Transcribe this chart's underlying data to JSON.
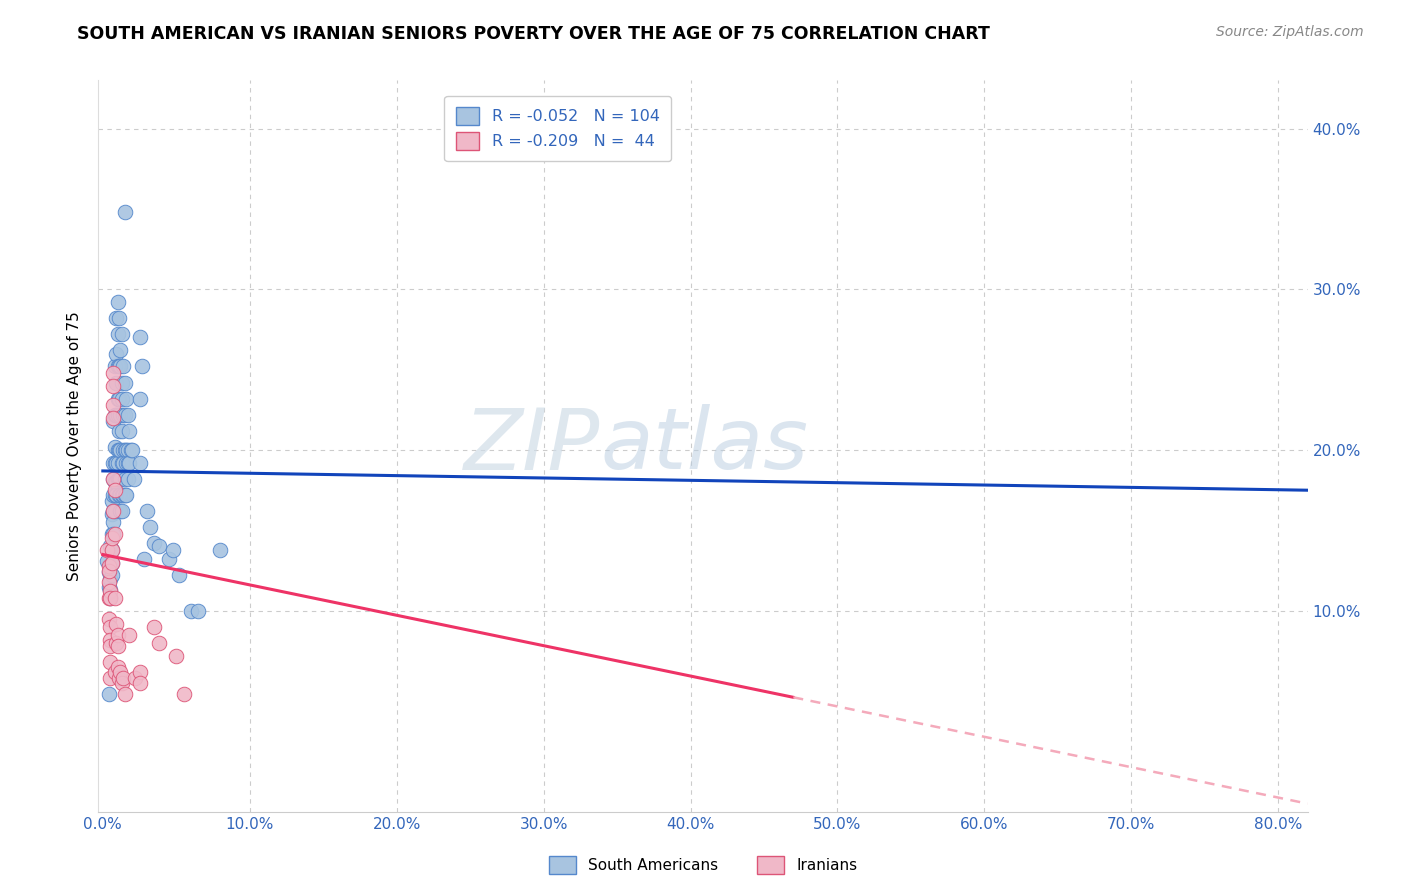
{
  "title": "SOUTH AMERICAN VS IRANIAN SENIORS POVERTY OVER THE AGE OF 75 CORRELATION CHART",
  "source": "Source: ZipAtlas.com",
  "ylabel": "Seniors Poverty Over the Age of 75",
  "xlim": [
    -0.003,
    0.82
  ],
  "ylim": [
    -0.025,
    0.43
  ],
  "legend_blue_r": "-0.052",
  "legend_blue_n": "104",
  "legend_pink_r": "-0.209",
  "legend_pink_n": " 44",
  "legend_label_blue": "South Americans",
  "legend_label_pink": "Iranians",
  "blue_color": "#A8C4E0",
  "blue_edge_color": "#5588CC",
  "pink_color": "#F0B8C8",
  "pink_edge_color": "#DD5577",
  "trendline_blue": "#1144BB",
  "trendline_pink_solid": "#EE3366",
  "trendline_pink_dashed": "#F4AABB",
  "blue_scatter": [
    [
      0.003,
      0.131
    ],
    [
      0.004,
      0.124
    ],
    [
      0.004,
      0.115
    ],
    [
      0.005,
      0.128
    ],
    [
      0.005,
      0.12
    ],
    [
      0.005,
      0.113
    ],
    [
      0.005,
      0.108
    ],
    [
      0.005,
      0.14
    ],
    [
      0.006,
      0.148
    ],
    [
      0.006,
      0.138
    ],
    [
      0.006,
      0.13
    ],
    [
      0.006,
      0.16
    ],
    [
      0.006,
      0.168
    ],
    [
      0.006,
      0.122
    ],
    [
      0.007,
      0.172
    ],
    [
      0.007,
      0.182
    ],
    [
      0.007,
      0.162
    ],
    [
      0.007,
      0.155
    ],
    [
      0.007,
      0.148
    ],
    [
      0.007,
      0.192
    ],
    [
      0.007,
      0.218
    ],
    [
      0.008,
      0.252
    ],
    [
      0.008,
      0.222
    ],
    [
      0.008,
      0.202
    ],
    [
      0.008,
      0.192
    ],
    [
      0.008,
      0.18
    ],
    [
      0.008,
      0.172
    ],
    [
      0.008,
      0.162
    ],
    [
      0.009,
      0.282
    ],
    [
      0.009,
      0.26
    ],
    [
      0.009,
      0.242
    ],
    [
      0.009,
      0.222
    ],
    [
      0.009,
      0.192
    ],
    [
      0.009,
      0.18
    ],
    [
      0.009,
      0.172
    ],
    [
      0.01,
      0.292
    ],
    [
      0.01,
      0.272
    ],
    [
      0.01,
      0.252
    ],
    [
      0.01,
      0.232
    ],
    [
      0.01,
      0.222
    ],
    [
      0.01,
      0.2
    ],
    [
      0.01,
      0.192
    ],
    [
      0.01,
      0.182
    ],
    [
      0.011,
      0.282
    ],
    [
      0.011,
      0.252
    ],
    [
      0.011,
      0.232
    ],
    [
      0.011,
      0.212
    ],
    [
      0.011,
      0.2
    ],
    [
      0.011,
      0.182
    ],
    [
      0.011,
      0.172
    ],
    [
      0.012,
      0.262
    ],
    [
      0.012,
      0.252
    ],
    [
      0.012,
      0.222
    ],
    [
      0.012,
      0.2
    ],
    [
      0.012,
      0.182
    ],
    [
      0.012,
      0.172
    ],
    [
      0.012,
      0.162
    ],
    [
      0.013,
      0.272
    ],
    [
      0.013,
      0.242
    ],
    [
      0.013,
      0.232
    ],
    [
      0.013,
      0.212
    ],
    [
      0.013,
      0.192
    ],
    [
      0.013,
      0.172
    ],
    [
      0.013,
      0.162
    ],
    [
      0.014,
      0.252
    ],
    [
      0.014,
      0.222
    ],
    [
      0.014,
      0.2
    ],
    [
      0.014,
      0.192
    ],
    [
      0.014,
      0.172
    ],
    [
      0.015,
      0.348
    ],
    [
      0.015,
      0.242
    ],
    [
      0.015,
      0.222
    ],
    [
      0.015,
      0.2
    ],
    [
      0.015,
      0.182
    ],
    [
      0.015,
      0.172
    ],
    [
      0.016,
      0.232
    ],
    [
      0.016,
      0.2
    ],
    [
      0.016,
      0.192
    ],
    [
      0.016,
      0.172
    ],
    [
      0.017,
      0.222
    ],
    [
      0.017,
      0.2
    ],
    [
      0.017,
      0.192
    ],
    [
      0.017,
      0.182
    ],
    [
      0.018,
      0.212
    ],
    [
      0.018,
      0.192
    ],
    [
      0.019,
      0.2
    ],
    [
      0.02,
      0.2
    ],
    [
      0.021,
      0.182
    ],
    [
      0.025,
      0.27
    ],
    [
      0.025,
      0.232
    ],
    [
      0.025,
      0.192
    ],
    [
      0.027,
      0.252
    ],
    [
      0.028,
      0.132
    ],
    [
      0.03,
      0.162
    ],
    [
      0.032,
      0.152
    ],
    [
      0.035,
      0.142
    ],
    [
      0.038,
      0.14
    ],
    [
      0.045,
      0.132
    ],
    [
      0.048,
      0.138
    ],
    [
      0.052,
      0.122
    ],
    [
      0.06,
      0.1
    ],
    [
      0.065,
      0.1
    ],
    [
      0.08,
      0.138
    ],
    [
      0.004,
      0.048
    ]
  ],
  "pink_scatter": [
    [
      0.003,
      0.138
    ],
    [
      0.004,
      0.128
    ],
    [
      0.004,
      0.118
    ],
    [
      0.004,
      0.108
    ],
    [
      0.004,
      0.125
    ],
    [
      0.004,
      0.095
    ],
    [
      0.005,
      0.112
    ],
    [
      0.005,
      0.09
    ],
    [
      0.005,
      0.082
    ],
    [
      0.005,
      0.108
    ],
    [
      0.005,
      0.078
    ],
    [
      0.005,
      0.068
    ],
    [
      0.005,
      0.058
    ],
    [
      0.006,
      0.138
    ],
    [
      0.006,
      0.145
    ],
    [
      0.006,
      0.13
    ],
    [
      0.007,
      0.248
    ],
    [
      0.007,
      0.24
    ],
    [
      0.007,
      0.228
    ],
    [
      0.007,
      0.22
    ],
    [
      0.007,
      0.182
    ],
    [
      0.007,
      0.162
    ],
    [
      0.008,
      0.175
    ],
    [
      0.008,
      0.148
    ],
    [
      0.008,
      0.108
    ],
    [
      0.008,
      0.062
    ],
    [
      0.009,
      0.092
    ],
    [
      0.009,
      0.08
    ],
    [
      0.01,
      0.085
    ],
    [
      0.01,
      0.078
    ],
    [
      0.01,
      0.065
    ],
    [
      0.011,
      0.058
    ],
    [
      0.012,
      0.062
    ],
    [
      0.013,
      0.055
    ],
    [
      0.014,
      0.058
    ],
    [
      0.015,
      0.048
    ],
    [
      0.018,
      0.085
    ],
    [
      0.022,
      0.058
    ],
    [
      0.025,
      0.062
    ],
    [
      0.025,
      0.055
    ],
    [
      0.035,
      0.09
    ],
    [
      0.038,
      0.08
    ],
    [
      0.05,
      0.072
    ],
    [
      0.055,
      0.048
    ]
  ]
}
